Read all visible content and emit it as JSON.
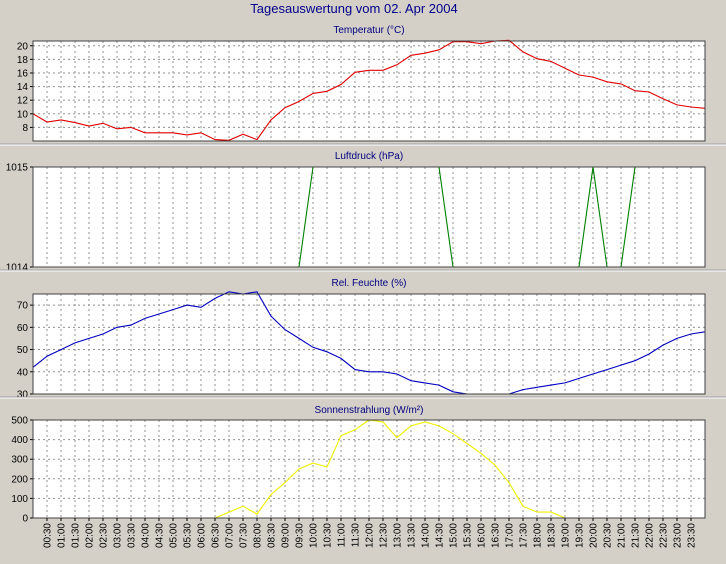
{
  "window_title": "Tagesauswertung vom 02. Apr 2004",
  "colors": {
    "background": "#d4d0c8",
    "plot_bg": "#ffffff",
    "title": "#00008b",
    "panel_title": "#000080",
    "temperature": "#e00000",
    "pressure": "#008000",
    "humidity": "#0000c0",
    "radiation": "#f0f000",
    "grid": "#909090"
  },
  "time_labels": [
    "00:30",
    "01:00",
    "01:30",
    "02:00",
    "02:30",
    "03:00",
    "03:30",
    "04:00",
    "04:30",
    "05:00",
    "05:30",
    "06:00",
    "06:30",
    "07:00",
    "07:30",
    "08:00",
    "08:30",
    "09:00",
    "09:30",
    "10:00",
    "10:30",
    "11:00",
    "11:30",
    "12:00",
    "12:30",
    "13:00",
    "13:30",
    "14:00",
    "14:30",
    "15:00",
    "15:30",
    "16:00",
    "16:30",
    "17:00",
    "17:30",
    "18:00",
    "18:30",
    "19:00",
    "19:30",
    "20:00",
    "20:30",
    "21:00",
    "21:30",
    "22:00",
    "22:30",
    "23:00",
    "23:30"
  ],
  "chart_data": [
    {
      "type": "line",
      "title": "Temperatur (°C)",
      "x": [
        "00:00",
        "00:30",
        "01:00",
        "01:30",
        "02:00",
        "02:30",
        "03:00",
        "03:30",
        "04:00",
        "04:30",
        "05:00",
        "05:30",
        "06:00",
        "06:30",
        "07:00",
        "07:30",
        "08:00",
        "08:30",
        "09:00",
        "09:30",
        "10:00",
        "10:30",
        "11:00",
        "11:30",
        "12:00",
        "12:30",
        "13:00",
        "13:30",
        "14:00",
        "14:30",
        "15:00",
        "15:30",
        "16:00",
        "16:30",
        "17:00",
        "17:30",
        "18:00",
        "18:30",
        "19:00",
        "19:30",
        "20:00",
        "20:30",
        "21:00",
        "21:30",
        "22:00",
        "22:30",
        "23:00",
        "23:30",
        "24:00"
      ],
      "values": [
        10,
        8.8,
        9.1,
        8.7,
        8.2,
        8.6,
        7.8,
        8.0,
        7.2,
        7.2,
        7.2,
        6.9,
        7.2,
        6.2,
        6.1,
        7.0,
        6.2,
        9.1,
        10.9,
        11.8,
        13.0,
        13.3,
        14.3,
        16.1,
        16.4,
        16.4,
        17.2,
        18.6,
        18.9,
        19.4,
        20.6,
        20.6,
        20.3,
        20.7,
        20.8,
        19.1,
        18.1,
        17.7,
        16.7,
        15.7,
        15.4,
        14.7,
        14.4,
        13.4,
        13.2,
        12.2,
        11.3,
        11.0,
        10.8
      ],
      "yticks": [
        8,
        10,
        12,
        14,
        16,
        18,
        20
      ],
      "ylim": [
        6,
        20.7
      ],
      "grid": true
    },
    {
      "type": "line",
      "title": "Luftdruck (hPa)",
      "x": [
        "00:00",
        "00:30",
        "01:00",
        "01:30",
        "02:00",
        "02:30",
        "03:00",
        "03:30",
        "04:00",
        "04:30",
        "05:00",
        "05:30",
        "06:00",
        "06:30",
        "07:00",
        "07:30",
        "08:00",
        "08:30",
        "09:00",
        "09:30",
        "10:00",
        "10:30",
        "11:00",
        "11:30",
        "12:00",
        "12:30",
        "13:00",
        "13:30",
        "14:00",
        "14:30",
        "15:00",
        "15:30",
        "16:00",
        "16:30",
        "17:00",
        "17:30",
        "18:00",
        "18:30",
        "19:00",
        "19:30",
        "20:00",
        "20:30",
        "21:00",
        "21:30",
        "22:00",
        "22:30",
        "23:00",
        "23:30",
        "24:00"
      ],
      "values": [
        null,
        null,
        null,
        null,
        null,
        null,
        null,
        null,
        null,
        null,
        null,
        null,
        null,
        null,
        null,
        null,
        null,
        null,
        null,
        1014,
        1015,
        1015,
        1015,
        1015,
        1015,
        1015,
        1015,
        1015,
        1015,
        1015,
        1014,
        1014,
        1014,
        1014,
        1014,
        1014,
        1014,
        1014,
        1014,
        1014,
        1015,
        1014,
        1014,
        1015,
        null,
        null,
        null,
        null,
        null
      ],
      "yticks": [
        1014,
        1015
      ],
      "ylim": [
        1014,
        1015
      ],
      "grid": true
    },
    {
      "type": "line",
      "title": "Rel. Feuchte (%)",
      "x": [
        "00:00",
        "00:30",
        "01:00",
        "01:30",
        "02:00",
        "02:30",
        "03:00",
        "03:30",
        "04:00",
        "04:30",
        "05:00",
        "05:30",
        "06:00",
        "06:30",
        "07:00",
        "07:30",
        "08:00",
        "08:30",
        "09:00",
        "09:30",
        "10:00",
        "10:30",
        "11:00",
        "11:30",
        "12:00",
        "12:30",
        "13:00",
        "13:30",
        "14:00",
        "14:30",
        "15:00",
        "15:30",
        "16:00",
        "16:30",
        "17:00",
        "17:30",
        "18:00",
        "18:30",
        "19:00",
        "19:30",
        "20:00",
        "20:30",
        "21:00",
        "21:30",
        "22:00",
        "22:30",
        "23:00",
        "23:30",
        "24:00"
      ],
      "values": [
        42,
        47,
        50,
        53,
        55,
        57,
        60,
        61,
        64,
        66,
        68,
        70,
        69,
        73,
        76,
        75,
        76,
        65,
        59,
        55,
        51,
        49,
        46,
        41,
        40,
        40,
        39,
        36,
        35,
        34,
        31,
        30,
        30,
        30,
        30,
        32,
        33,
        34,
        35,
        37,
        39,
        41,
        43,
        45,
        48,
        52,
        55,
        57,
        58
      ],
      "yticks": [
        30,
        40,
        50,
        60,
        70
      ],
      "ylim": [
        30,
        75
      ],
      "grid": true
    },
    {
      "type": "line",
      "title": "Sonnenstrahlung (W/m²)",
      "x": [
        "00:00",
        "00:30",
        "01:00",
        "01:30",
        "02:00",
        "02:30",
        "03:00",
        "03:30",
        "04:00",
        "04:30",
        "05:00",
        "05:30",
        "06:00",
        "06:30",
        "07:00",
        "07:30",
        "08:00",
        "08:30",
        "09:00",
        "09:30",
        "10:00",
        "10:30",
        "11:00",
        "11:30",
        "12:00",
        "12:30",
        "13:00",
        "13:30",
        "14:00",
        "14:30",
        "15:00",
        "15:30",
        "16:00",
        "16:30",
        "17:00",
        "17:30",
        "18:00",
        "18:30",
        "19:00",
        "19:30",
        "20:00",
        "20:30",
        "21:00",
        "21:30",
        "22:00",
        "22:30",
        "23:00",
        "23:30",
        "24:00"
      ],
      "values": [
        0,
        0,
        0,
        0,
        0,
        0,
        0,
        0,
        0,
        0,
        0,
        0,
        0,
        0,
        30,
        60,
        20,
        120,
        180,
        250,
        280,
        260,
        420,
        450,
        500,
        490,
        410,
        470,
        490,
        470,
        430,
        380,
        330,
        270,
        180,
        60,
        30,
        30,
        0,
        0,
        0,
        0,
        0,
        0,
        0,
        0,
        0,
        0,
        0
      ],
      "yticks": [
        0,
        100,
        200,
        300,
        400,
        500
      ],
      "ylim": [
        0,
        500
      ],
      "grid": true
    }
  ]
}
